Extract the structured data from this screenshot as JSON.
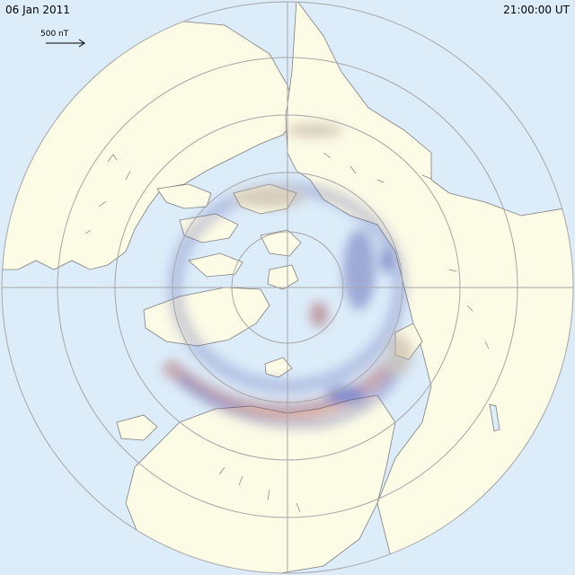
{
  "header": {
    "date": "06 Jan 2011",
    "time": "21:00:00 UT"
  },
  "scale": {
    "label": "500 nT"
  },
  "colors": {
    "ocean": "#dcecf9",
    "land": "#fcfbe6",
    "grid": "#a6a6a6",
    "coast": "#7f7f7f",
    "positive": "#9a3a3a",
    "negative": "#3a3fa0",
    "neutral": "#b9a99a"
  }
}
